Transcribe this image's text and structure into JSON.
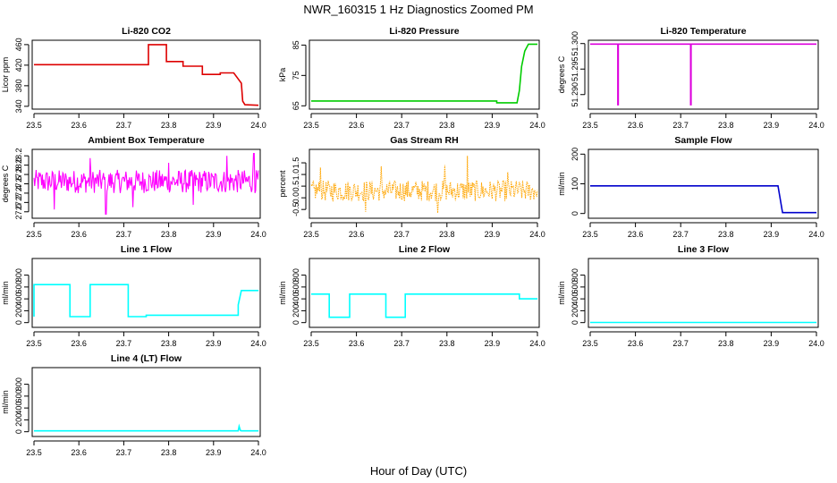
{
  "figure": {
    "title": "NWR_160315  1 Hz Diagnostics Zoomed PM",
    "xlabel": "Hour of Day (UTC)"
  },
  "chart_data": [
    {
      "type": "line",
      "title": "Li-820 CO2",
      "ylabel": "Licor ppm",
      "color": "#dd0000",
      "xlim": [
        23.5,
        24.0
      ],
      "ylim": [
        338,
        465
      ],
      "xticks": [
        "23.5",
        "23.6",
        "23.7",
        "23.8",
        "23.9",
        "24.0"
      ],
      "yticks": [
        "340",
        "380",
        "420",
        "460"
      ],
      "x": [
        23.5,
        23.755,
        23.755,
        23.795,
        23.795,
        23.832,
        23.832,
        23.875,
        23.875,
        23.915,
        23.915,
        23.945,
        23.945,
        23.962,
        23.965,
        23.97,
        24.0
      ],
      "y": [
        421,
        421,
        460,
        460,
        427,
        427,
        418,
        418,
        402,
        402,
        405,
        405,
        405,
        385,
        350,
        343,
        342
      ]
    },
    {
      "type": "line",
      "title": "Li-820 Pressure",
      "ylabel": "kPa",
      "color": "#00cc00",
      "xlim": [
        23.5,
        24.0
      ],
      "ylim": [
        64.5,
        86
      ],
      "xticks": [
        "23.5",
        "23.6",
        "23.7",
        "23.8",
        "23.9",
        "24.0"
      ],
      "yticks": [
        "65",
        "75",
        "85"
      ],
      "x": [
        23.5,
        23.91,
        23.91,
        23.955,
        23.96,
        23.965,
        23.972,
        23.98,
        24.0
      ],
      "y": [
        66.6,
        66.6,
        66.0,
        66.0,
        70,
        78,
        83,
        85.3,
        85.3
      ]
    },
    {
      "type": "line",
      "title": "Li-820 Temperature",
      "ylabel": "degrees C",
      "color": "#dd00dd",
      "xlim": [
        23.5,
        24.0
      ],
      "ylim": [
        51.2875,
        51.3003
      ],
      "xticks": [
        "23.5",
        "23.6",
        "23.7",
        "23.8",
        "23.9",
        "24.0"
      ],
      "yticks": [
        "51.290",
        "51.295",
        "51.300"
      ],
      "x": [
        23.5,
        23.561,
        23.561,
        23.562,
        23.562,
        23.722,
        23.722,
        23.723,
        23.723,
        24.0
      ],
      "y": [
        51.2999,
        51.2999,
        51.288,
        51.288,
        51.2999,
        51.2999,
        51.288,
        51.288,
        51.2999,
        51.2999
      ]
    },
    {
      "type": "line",
      "title": "Ambient Box Temperature",
      "ylabel": "degrees C",
      "color": "#ff00ff",
      "xlim": [
        23.5,
        24.0
      ],
      "ylim": [
        26.9,
        28.3
      ],
      "xticks": [
        "23.5",
        "23.6",
        "23.7",
        "23.8",
        "23.9",
        "24.0"
      ],
      "yticks": [
        "27.0",
        "27.2",
        "27.4",
        "27.6",
        "27.8",
        "28.0",
        "28.2"
      ],
      "noise_center": 27.65,
      "noise_amplitude": 0.25,
      "spikes": [
        {
          "x": 23.545,
          "y": 27.05
        },
        {
          "x": 23.625,
          "y": 28.15
        },
        {
          "x": 23.66,
          "y": 26.95
        },
        {
          "x": 23.8,
          "y": 28.05
        },
        {
          "x": 23.855,
          "y": 27.15
        },
        {
          "x": 23.93,
          "y": 28.2
        },
        {
          "x": 23.99,
          "y": 28.25
        },
        {
          "x": 23.72,
          "y": 27.1
        }
      ]
    },
    {
      "type": "scatter",
      "title": "Gas Stream RH",
      "ylabel": "percent",
      "color": "#ffa500",
      "xlim": [
        23.5,
        24.0
      ],
      "ylim": [
        -0.8,
        2.0
      ],
      "xticks": [
        "23.5",
        "23.6",
        "23.7",
        "23.8",
        "23.9",
        "24.0"
      ],
      "yticks": [
        "-0.5",
        "0.0",
        "0.5",
        "1.0",
        "1.5"
      ],
      "noise_center": 0.3,
      "noise_amplitude": 0.45,
      "spikes": [
        {
          "x": 23.52,
          "y": 1.3
        },
        {
          "x": 23.655,
          "y": 1.35
        },
        {
          "x": 23.795,
          "y": 1.4
        },
        {
          "x": 23.845,
          "y": 1.8
        },
        {
          "x": 23.935,
          "y": 1.1
        },
        {
          "x": 23.62,
          "y": -0.6
        },
        {
          "x": 23.78,
          "y": -0.65
        }
      ]
    },
    {
      "type": "line",
      "title": "Sample Flow",
      "ylabel": "ml/min",
      "color": "#0000cc",
      "xlim": [
        23.5,
        24.0
      ],
      "ylim": [
        -10,
        210
      ],
      "xticks": [
        "23.5",
        "23.6",
        "23.7",
        "23.8",
        "23.9",
        "24.0"
      ],
      "yticks": [
        "0",
        "100",
        "200"
      ],
      "x": [
        23.5,
        23.915,
        23.925,
        24.0
      ],
      "y": [
        93,
        93,
        3,
        3
      ]
    },
    {
      "type": "line",
      "title": "Line 1 Flow",
      "ylabel": "ml/min",
      "color": "#00ffff",
      "xlim": [
        23.5,
        24.0
      ],
      "ylim": [
        -50,
        1050
      ],
      "xticks": [
        "23.5",
        "23.6",
        "23.7",
        "23.8",
        "23.9",
        "24.0"
      ],
      "yticks": [
        "0",
        "200",
        "400",
        "600",
        "800"
      ],
      "x": [
        23.5,
        23.5,
        23.58,
        23.58,
        23.625,
        23.625,
        23.71,
        23.71,
        23.75,
        23.75,
        23.955,
        23.955,
        23.962,
        24.0
      ],
      "y": [
        100,
        640,
        640,
        100,
        100,
        640,
        640,
        100,
        100,
        125,
        125,
        300,
        540,
        540
      ]
    },
    {
      "type": "line",
      "title": "Line 2 Flow",
      "ylabel": "ml/min",
      "color": "#00ffff",
      "xlim": [
        23.5,
        24.0
      ],
      "ylim": [
        -50,
        1050
      ],
      "xticks": [
        "23.5",
        "23.6",
        "23.7",
        "23.8",
        "23.9",
        "24.0"
      ],
      "yticks": [
        "0",
        "200",
        "400",
        "600",
        "800"
      ],
      "x": [
        23.5,
        23.54,
        23.54,
        23.585,
        23.585,
        23.665,
        23.665,
        23.708,
        23.708,
        23.96,
        23.96,
        24.0
      ],
      "y": [
        480,
        480,
        90,
        90,
        480,
        480,
        90,
        90,
        480,
        480,
        400,
        400
      ]
    },
    {
      "type": "line",
      "title": "Line 3 Flow",
      "ylabel": "ml/min",
      "color": "#00ffff",
      "xlim": [
        23.5,
        24.0
      ],
      "ylim": [
        -50,
        1050
      ],
      "xticks": [
        "23.5",
        "23.6",
        "23.7",
        "23.8",
        "23.9",
        "24.0"
      ],
      "yticks": [
        "0",
        "200",
        "400",
        "600",
        "800"
      ],
      "x": [
        23.5,
        24.0
      ],
      "y": [
        2,
        2
      ]
    },
    {
      "type": "line",
      "title": "Line 4 (LT) Flow",
      "ylabel": "ml/min",
      "color": "#00ffff",
      "xlim": [
        23.5,
        24.0
      ],
      "ylim": [
        -50,
        1050
      ],
      "xticks": [
        "23.5",
        "23.6",
        "23.7",
        "23.8",
        "23.9",
        "24.0"
      ],
      "yticks": [
        "0",
        "200",
        "400",
        "600",
        "800"
      ],
      "x": [
        23.5,
        23.955,
        23.957,
        23.96,
        23.962,
        24.0
      ],
      "y": [
        15,
        15,
        90,
        20,
        15,
        15
      ]
    }
  ]
}
